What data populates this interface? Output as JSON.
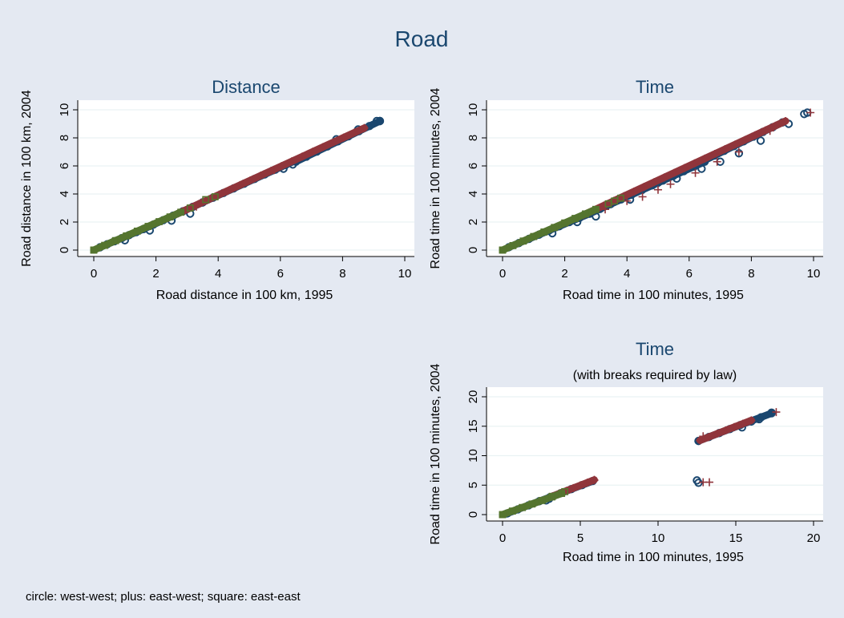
{
  "title": "Road",
  "note": "circle: west-west; plus: east-west; square: east-east",
  "colors": {
    "background": "#e4e9f2",
    "west_west": "#1a476f",
    "east_west": "#90353b",
    "east_east": "#55752f"
  },
  "chart_data": [
    {
      "type": "scatter",
      "title": "Distance",
      "subtitle": "",
      "xlabel": "Road distance in 100 km, 1995",
      "ylabel": "Road distance in 100 km, 2004",
      "xlim": [
        0,
        10
      ],
      "ylim": [
        0,
        10
      ],
      "xticks": [
        0,
        2,
        4,
        6,
        8,
        10
      ],
      "yticks": [
        0,
        2,
        4,
        6,
        8,
        10
      ],
      "grid": true,
      "series": [
        {
          "marker": "circle",
          "color": "#1a476f",
          "segments": [
            [
              0.2,
              0.2,
              1.6,
              1.5
            ],
            [
              1.6,
              1.5,
              3.5,
              3.4
            ],
            [
              3.5,
              3.4,
              6.5,
              6.4
            ],
            [
              6.5,
              6.3,
              9.2,
              9.2
            ]
          ],
          "points": [
            [
              1.0,
              0.7
            ],
            [
              1.8,
              1.4
            ],
            [
              2.5,
              2.1
            ],
            [
              3.1,
              2.6
            ],
            [
              6.1,
              5.8
            ],
            [
              6.4,
              6.1
            ],
            [
              7.8,
              7.9
            ],
            [
              8.5,
              8.6
            ],
            [
              9.1,
              9.2
            ],
            [
              9.2,
              9.2
            ]
          ]
        },
        {
          "marker": "plus",
          "color": "#90353b",
          "segments": [
            [
              2.7,
              2.6,
              8.7,
              8.7
            ]
          ],
          "points": [
            [
              2.4,
              2.3
            ],
            [
              3.3,
              3.1
            ],
            [
              4.3,
              4.2
            ],
            [
              5.8,
              5.7
            ],
            [
              8.7,
              8.7
            ]
          ]
        },
        {
          "marker": "square",
          "color": "#55752f",
          "segments": [
            [
              0.0,
              0.0,
              2.8,
              2.7
            ]
          ],
          "points": [
            [
              0.0,
              0.0
            ],
            [
              3.1,
              3.0
            ],
            [
              3.6,
              3.6
            ],
            [
              3.9,
              3.8
            ]
          ]
        }
      ]
    },
    {
      "type": "scatter",
      "title": "Time",
      "subtitle": "",
      "xlabel": "Road time in 100 minutes, 1995",
      "ylabel": "Road time in 100 minutes, 2004",
      "xlim": [
        0,
        10
      ],
      "ylim": [
        0,
        10
      ],
      "xticks": [
        0,
        2,
        4,
        6,
        8,
        10
      ],
      "yticks": [
        0,
        2,
        4,
        6,
        8,
        10
      ],
      "grid": true,
      "series": [
        {
          "marker": "circle",
          "color": "#1a476f",
          "segments": [
            [
              0.2,
              0.2,
              2.8,
              2.6
            ],
            [
              2.8,
              2.6,
              6.5,
              6.3
            ],
            [
              6.5,
              6.4,
              9.0,
              9.1
            ]
          ],
          "points": [
            [
              1.6,
              1.2
            ],
            [
              2.4,
              2.0
            ],
            [
              3.0,
              2.4
            ],
            [
              4.1,
              3.6
            ],
            [
              5.0,
              4.8
            ],
            [
              5.6,
              5.1
            ],
            [
              6.4,
              5.8
            ],
            [
              7.0,
              6.3
            ],
            [
              7.6,
              6.9
            ],
            [
              8.3,
              7.8
            ],
            [
              9.2,
              9.0
            ],
            [
              9.7,
              9.7
            ],
            [
              9.8,
              9.8
            ]
          ]
        },
        {
          "marker": "plus",
          "color": "#90353b",
          "segments": [
            [
              2.6,
              2.5,
              9.1,
              9.2
            ]
          ],
          "points": [
            [
              3.3,
              2.9
            ],
            [
              4.0,
              3.5
            ],
            [
              4.5,
              3.8
            ],
            [
              5.0,
              4.3
            ],
            [
              5.4,
              4.7
            ],
            [
              6.2,
              5.5
            ],
            [
              6.9,
              6.3
            ],
            [
              7.6,
              7.0
            ],
            [
              8.6,
              8.5
            ],
            [
              9.9,
              9.8
            ]
          ]
        },
        {
          "marker": "square",
          "color": "#55752f",
          "segments": [
            [
              0.0,
              0.0,
              3.0,
              2.9
            ]
          ],
          "points": [
            [
              0.0,
              0.0
            ],
            [
              3.4,
              3.3
            ],
            [
              3.6,
              3.5
            ],
            [
              3.8,
              3.7
            ]
          ]
        }
      ]
    },
    {
      "type": "scatter",
      "title": "Time",
      "subtitle": "(with breaks required by law)",
      "xlabel": "Road time in 100 minutes, 1995",
      "ylabel": "Road time in 100 minutes, 2004",
      "xlim": [
        0,
        20
      ],
      "ylim": [
        0,
        20
      ],
      "xticks": [
        0,
        5,
        10,
        15,
        20
      ],
      "yticks": [
        0,
        5,
        10,
        15,
        20
      ],
      "grid": true,
      "series": [
        {
          "marker": "circle",
          "color": "#1a476f",
          "segments": [
            [
              0.3,
              0.2,
              5.8,
              5.7
            ],
            [
              12.6,
              12.5,
              17.3,
              17.2
            ]
          ],
          "points": [
            [
              2.8,
              2.4
            ],
            [
              3.0,
              2.7
            ],
            [
              15.4,
              14.8
            ],
            [
              16.0,
              15.8
            ],
            [
              16.5,
              16.2
            ],
            [
              17.3,
              17.3
            ],
            [
              12.5,
              5.8
            ],
            [
              12.6,
              5.4
            ]
          ]
        },
        {
          "marker": "plus",
          "color": "#90353b",
          "segments": [
            [
              3.2,
              3.1,
              5.9,
              5.9
            ],
            [
              12.7,
              12.6,
              16.0,
              16.0
            ]
          ],
          "points": [
            [
              5.9,
              5.8
            ],
            [
              12.9,
              5.5
            ],
            [
              13.3,
              5.5
            ],
            [
              17.6,
              17.4
            ],
            [
              12.9,
              13.3
            ]
          ]
        },
        {
          "marker": "square",
          "color": "#55752f",
          "segments": [
            [
              0.0,
              0.0,
              3.8,
              3.6
            ]
          ],
          "points": [
            [
              0.0,
              0.0
            ],
            [
              3.2,
              3.1
            ],
            [
              4.0,
              3.9
            ]
          ]
        }
      ]
    }
  ]
}
